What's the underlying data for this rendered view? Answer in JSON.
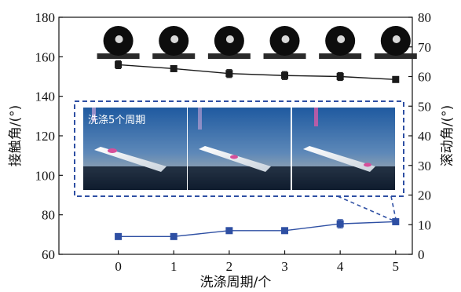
{
  "chart_data": {
    "type": "line",
    "x": [
      0,
      1,
      2,
      3,
      4,
      5
    ],
    "xlabel": "洗涤周期/个",
    "ylabel_left": "接触角/(°)",
    "ylabel_right": "滚动角/(°)",
    "ylim_left": [
      60,
      180
    ],
    "ylim_right": [
      0,
      80
    ],
    "xticks": [
      "0",
      "1",
      "2",
      "3",
      "4",
      "5"
    ],
    "yticks_left": [
      "60",
      "80",
      "100",
      "120",
      "140",
      "160",
      "180"
    ],
    "yticks_right": [
      "0",
      "10",
      "20",
      "30",
      "40",
      "50",
      "60",
      "70",
      "80"
    ],
    "series": [
      {
        "axis": "left",
        "color": "#1a1a1a",
        "values": [
          156,
          154,
          151.5,
          150.5,
          150,
          148.5
        ],
        "errors": [
          2,
          1,
          2,
          2,
          2,
          1
        ]
      },
      {
        "axis": "right",
        "color": "#2e4fa3",
        "values": [
          6,
          6,
          8,
          8,
          10.3,
          11
        ],
        "errors": [
          0.5,
          0.5,
          0.5,
          0.5,
          1.4,
          0.6
        ]
      }
    ],
    "inset_label": "洗涤5个周期"
  },
  "colors": {
    "accent": "#2e4fa3",
    "dark": "#1a1a1a"
  }
}
